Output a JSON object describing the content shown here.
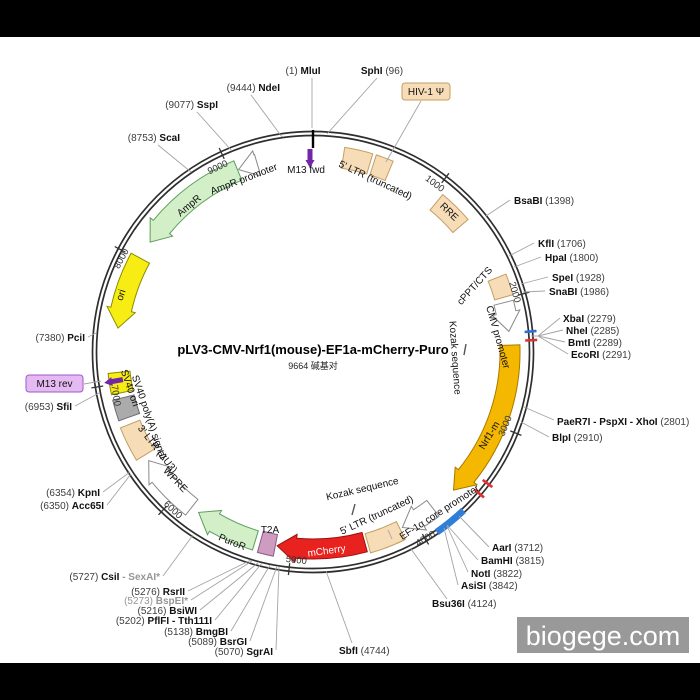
{
  "title": {
    "name": "pLV3-CMV-Nrf1(mouse)-EF1a-mCherry-Puro",
    "size": "9664 碱基对"
  },
  "watermark": "biogege.com",
  "ticks": [
    "1000",
    "2000",
    "3000",
    "4000",
    "5000",
    "6000",
    "7000",
    "8000",
    "9000"
  ],
  "features": {
    "ltr5_top": {
      "label": "5' LTR (truncated)",
      "color": "#f7dcb8"
    },
    "hiv_psi": {
      "label": "HIV-1 Ψ",
      "color": "#f7dcb8"
    },
    "rre": {
      "label": "RRE",
      "color": "#f7dcb8"
    },
    "cppt": {
      "label": "cPPT/CTS",
      "color": "#f7dcb8"
    },
    "cmv": {
      "label": "CMV promoter",
      "color": "#ffffff"
    },
    "kozak_right": {
      "label": "Kozak sequence"
    },
    "nrf1": {
      "label": "Nrf1-m",
      "color": "#f5b800"
    },
    "mcs_blue": {
      "color": "#2f7fd9"
    },
    "ef1a": {
      "label": "EF-1α core promoter",
      "color": "#ffffff"
    },
    "kozak_bottom": {
      "label": "Kozak sequence"
    },
    "ltr5_bottom": {
      "label": "5' LTR (truncated)",
      "color": "#f7dcb8"
    },
    "mcherry": {
      "label": "mCherry",
      "color": "#e8231f"
    },
    "t2a": {
      "label": "T2A",
      "color": "#ce9cc1"
    },
    "puror": {
      "label": "PuroR",
      "color": "#d2efc8"
    },
    "wpre": {
      "label": "WPRE",
      "color": "#ffffff"
    },
    "ltr3": {
      "label": "3' LTR (ΔU3)",
      "color": "#f7dcb8"
    },
    "sv40pa": {
      "label": "SV40 poly(A) signal",
      "color": "#ababab"
    },
    "sv40ori": {
      "label": "SV40 ori",
      "color": "#f7ec13"
    },
    "m13rev": {
      "label": "M13 rev",
      "color": "#7226a8"
    },
    "m13fwd": {
      "label": "M13 fwd",
      "color": "#7226a8"
    },
    "ori": {
      "label": "ori",
      "color": "#f7ec13"
    },
    "ampr": {
      "label": "AmpR",
      "color": "#d2efc8"
    },
    "ampr_prom": {
      "label": "AmpR promoter",
      "color": "#ffffff"
    }
  },
  "enzymes": {
    "mlu": {
      "pre": "(1) ",
      "name": "MluI"
    },
    "sph": {
      "name": "SphI",
      "post": " (96)"
    },
    "nde": {
      "pre": "(9444) ",
      "name": "NdeI"
    },
    "ssp": {
      "pre": "(9077) ",
      "name": "SspI"
    },
    "sca": {
      "pre": "(8753) ",
      "name": "ScaI"
    },
    "bsab": {
      "name": "BsaBI",
      "post": " (1398)"
    },
    "kfl": {
      "name": "KflI",
      "post": " (1706)"
    },
    "hpa": {
      "name": "HpaI",
      "post": " (1800)"
    },
    "spe": {
      "name": "SpeI",
      "post": " (1928)"
    },
    "snab": {
      "name": "SnaBI",
      "post": " (1986)"
    },
    "xba": {
      "name": "XbaI",
      "post": " (2279)"
    },
    "nhe": {
      "name": "NheI",
      "post": " (2285)"
    },
    "bmt": {
      "name": "BmtI",
      "post": " (2289)"
    },
    "ecor": {
      "name": "EcoRI",
      "post": " (2291)"
    },
    "paer": {
      "name": "PaeR7I - PspXI - XhoI",
      "post": " (2801)"
    },
    "blp": {
      "name": "BlpI",
      "post": " (2910)"
    },
    "aar": {
      "name": "AarI",
      "post": " (3712)"
    },
    "bamh": {
      "name": "BamHI",
      "post": " (3815)"
    },
    "not": {
      "name": "NotI",
      "post": " (3822)"
    },
    "asis": {
      "name": "AsiSI",
      "post": " (3842)"
    },
    "bsu": {
      "name": "Bsu36I",
      "post": " (4124)"
    },
    "sbf": {
      "name": "SbfI",
      "post": " (4744)"
    },
    "sgra": {
      "pre": "(5070) ",
      "name": "SgrAI"
    },
    "bsrg": {
      "pre": "(5089) ",
      "name": "BsrGI"
    },
    "bmgb": {
      "pre": "(5138) ",
      "name": "BmgBI"
    },
    "pflf": {
      "pre": "(5202) ",
      "name": "PflFI - Tth111I"
    },
    "bsiw": {
      "pre": "(5216) ",
      "name": "BsiWI"
    },
    "bspe": {
      "pre": "(5273) ",
      "name": "BspEI*"
    },
    "rsr": {
      "pre": "(5276) ",
      "name": "RsrII"
    },
    "csi": {
      "pre": "(5727) ",
      "name": "CsiI",
      "post": " - SexAI*"
    },
    "kpn": {
      "pre": "(6354) ",
      "name": "KpnI"
    },
    "acc": {
      "pre": "(6350) ",
      "name": "Acc65I"
    },
    "sfi": {
      "pre": "(6953) ",
      "name": "SfiI"
    },
    "pci": {
      "pre": "(7380) ",
      "name": "PciI"
    }
  }
}
